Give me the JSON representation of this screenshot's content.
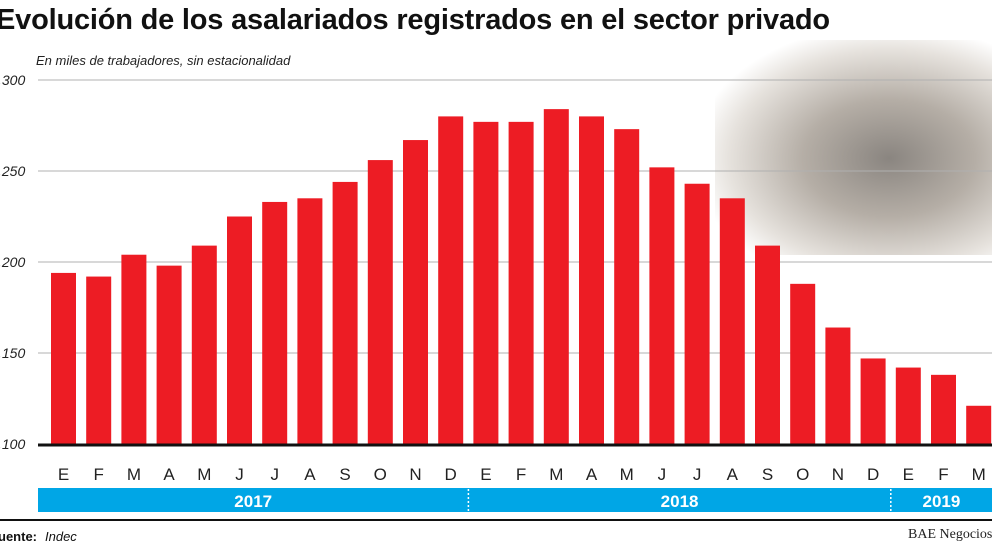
{
  "chart_data": {
    "type": "bar",
    "title": "Evolución de los asalariados registrados en el sector privado",
    "subtitle": "En miles de trabajadores, sin estacionalidad",
    "categories": [
      "E",
      "F",
      "M",
      "A",
      "M",
      "J",
      "J",
      "A",
      "S",
      "O",
      "N",
      "D",
      "E",
      "F",
      "M",
      "A",
      "M",
      "J",
      "J",
      "A",
      "S",
      "O",
      "N",
      "D",
      "E",
      "F",
      "M"
    ],
    "years": [
      {
        "label": "2017",
        "months": 12
      },
      {
        "label": "2018",
        "months": 12
      },
      {
        "label": "2019",
        "months": 3
      }
    ],
    "values": [
      194,
      192,
      204,
      198,
      209,
      225,
      233,
      235,
      244,
      256,
      267,
      280,
      277,
      277,
      284,
      280,
      273,
      252,
      243,
      235,
      209,
      188,
      164,
      147,
      142,
      138,
      121
    ],
    "yticks": [
      {
        "value": 100,
        "label": ".100"
      },
      {
        "value": 150,
        "label": ".150"
      },
      {
        "value": 200,
        "label": ".200"
      },
      {
        "value": 250,
        "label": ".250"
      },
      {
        "value": 300,
        "label": ".300"
      }
    ],
    "ylim": [
      100,
      300
    ],
    "grid": true,
    "colors": {
      "bar": "#ed1c24",
      "year_band": "#00a6e6",
      "grid": "#b0b0b0"
    }
  },
  "footer": {
    "source_label": "uente:",
    "source_value": "Indec",
    "credit": "BAE Negocios"
  }
}
